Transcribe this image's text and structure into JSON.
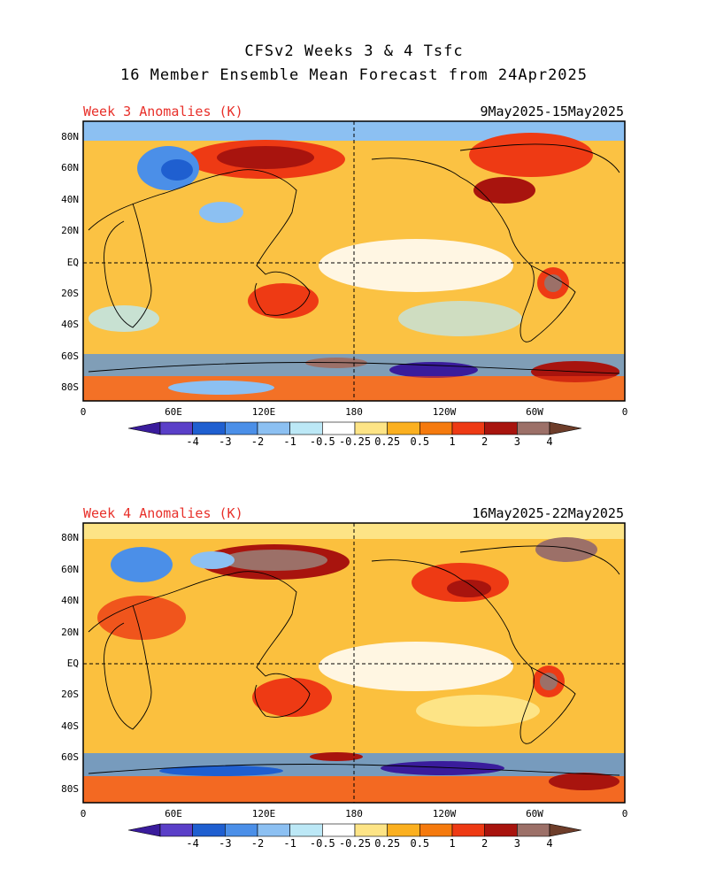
{
  "title": {
    "line1": "CFSv2 Weeks 3 & 4 Tsfc",
    "line2": "16 Member Ensemble Mean Forecast from 24Apr2025"
  },
  "panels": [
    {
      "label": "Week 3 Anomalies (K)",
      "dates": "9May2025-15May2025"
    },
    {
      "label": "Week 4 Anomalies (K)",
      "dates": "16May2025-22May2025"
    }
  ],
  "lat_labels": [
    "80N",
    "60N",
    "40N",
    "20N",
    "EQ",
    "20S",
    "40S",
    "60S",
    "80S"
  ],
  "lon_labels": [
    "0",
    "60E",
    "120E",
    "180",
    "120W",
    "60W",
    "0"
  ],
  "colorbar": {
    "labels": [
      "-4",
      "-3",
      "-2",
      "-1",
      "-0.5",
      "-0.25",
      "0.25",
      "0.5",
      "1",
      "2",
      "3",
      "4"
    ],
    "colors": [
      "#3a1c9c",
      "#5a3fc8",
      "#1f5fd0",
      "#4b8fe8",
      "#8cc0f2",
      "#bce8f6",
      "#ffffff",
      "#fde486",
      "#fbb020",
      "#f57a0e",
      "#ee3a14",
      "#a8140e",
      "#9c7068",
      "#6e3d2a"
    ]
  }
}
